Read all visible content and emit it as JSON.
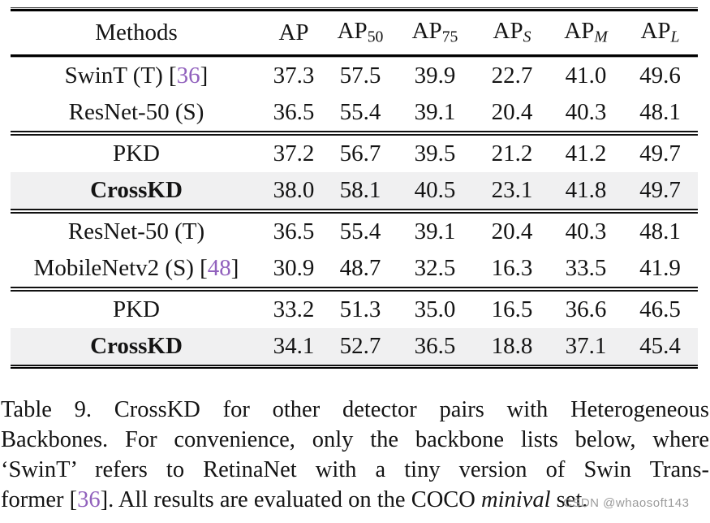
{
  "table": {
    "headers": [
      {
        "base": "Methods"
      },
      {
        "base": "AP"
      },
      {
        "base": "AP",
        "sub": "50"
      },
      {
        "base": "AP",
        "sub": "75"
      },
      {
        "base": "AP",
        "sub": "S"
      },
      {
        "base": "AP",
        "sub": "M"
      },
      {
        "base": "AP",
        "sub": "L"
      }
    ],
    "rows": [
      {
        "method_pre": "SwinT (T) [",
        "cite": "36",
        "method_post": "]",
        "values": [
          "37.3",
          "57.5",
          "39.9",
          "22.7",
          "41.0",
          "49.6"
        ]
      },
      {
        "method_pre": "ResNet-50 (S)",
        "values": [
          "36.5",
          "55.4",
          "39.1",
          "20.4",
          "40.3",
          "48.1"
        ]
      },
      {
        "method_pre": "PKD",
        "values": [
          "37.2",
          "56.7",
          "39.5",
          "21.2",
          "41.2",
          "49.7"
        ]
      },
      {
        "method_pre": "CrossKD",
        "values": [
          "38.0",
          "58.1",
          "40.5",
          "23.1",
          "41.8",
          "49.7"
        ]
      },
      {
        "method_pre": "ResNet-50 (T)",
        "values": [
          "36.5",
          "55.4",
          "39.1",
          "20.4",
          "40.3",
          "48.1"
        ]
      },
      {
        "method_pre": "MobileNetv2 (S) [",
        "cite": "48",
        "method_post": "]",
        "values": [
          "30.9",
          "48.7",
          "32.5",
          "16.3",
          "33.5",
          "41.9"
        ]
      },
      {
        "method_pre": "PKD",
        "values": [
          "33.2",
          "51.3",
          "35.0",
          "16.5",
          "36.6",
          "46.5"
        ]
      },
      {
        "method_pre": "CrossKD",
        "values": [
          "34.1",
          "52.7",
          "36.5",
          "18.8",
          "37.1",
          "45.4"
        ]
      }
    ]
  },
  "caption": {
    "line1": "Table 9. CrossKD for other detector pairs with Heterogeneous",
    "line2": "Backbones. For convenience, only the backbone lists below, where",
    "line3": "‘SwinT’ refers to RetinaNet with a tiny version of Swin Trans-",
    "line4_pre": "former [",
    "line4_cite": "36",
    "line4_mid": "]. All results are evaluated on the COCO ",
    "line4_italic": "minival",
    "line4_post": " set."
  },
  "watermark": "CSDN @whaosoft143",
  "colors": {
    "citation": "#9161bd",
    "highlight_row": "#f0f0f1",
    "text": "#141414",
    "watermark": "#9b9b9b"
  }
}
